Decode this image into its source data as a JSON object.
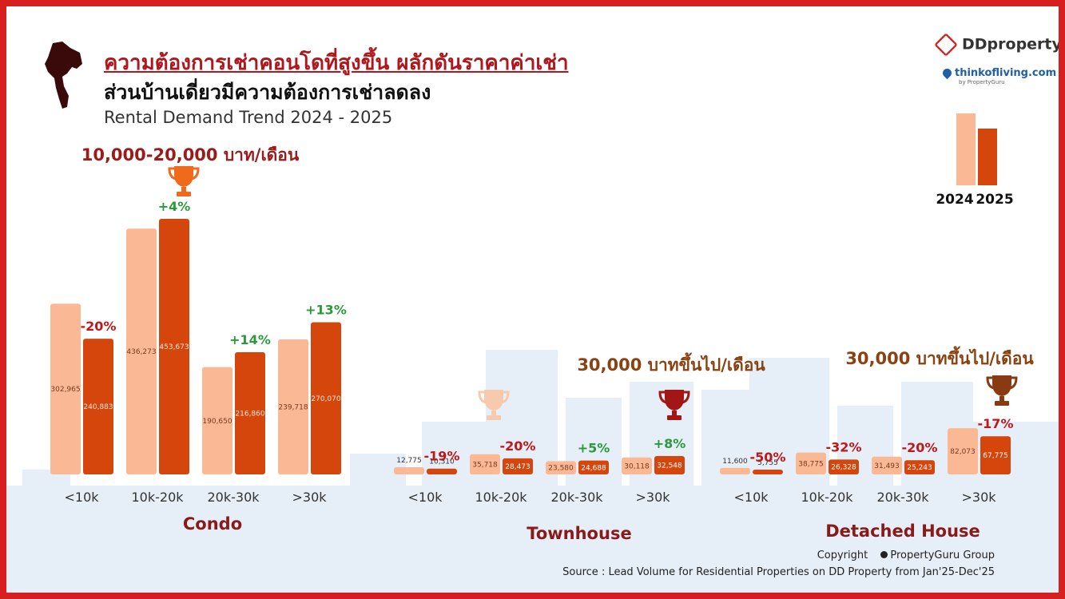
{
  "header": {
    "title": "ความต้องการเช่าคอนโดที่สูงขึ้น ผลักดันราคาค่าเช่า",
    "subtitle": "ส่วนบ้านเดี่ยวมีความต้องการเช่าลดลง",
    "subtitle_en": "Rental Demand Trend 2024 - 2025"
  },
  "logos": {
    "ddproperty": "DDproperty",
    "thinkofliving": "thinkofliving.com",
    "thinkofliving_by": "by PropertyGuru"
  },
  "legend": {
    "years": [
      "2024",
      "2025"
    ],
    "colors": [
      "#fbb894",
      "#d4460c"
    ]
  },
  "highlights": [
    {
      "text": "10,000-20,000 บาท/เดือน",
      "color": "#9b1a1a"
    },
    {
      "text": "30,000 บาทขึ้นไป/เดือน",
      "color": "#8a4212"
    },
    {
      "text": "30,000 บาทขึ้นไป/เดือน",
      "color": "#8a4212"
    }
  ],
  "icons": {
    "map": "thailand-map-icon",
    "trophy_condo": "trophy-icon",
    "trophy_townhouse_faded": "trophy-icon",
    "trophy_townhouse": "trophy-icon",
    "trophy_detached": "trophy-icon",
    "copyright": "propertyguru-icon"
  },
  "chart_data": [
    {
      "type": "bar",
      "title": "Condo",
      "categories": [
        "<10k",
        "10k-20k",
        "20k-30k",
        ">30k"
      ],
      "series": [
        {
          "name": "2024",
          "values": [
            302965,
            436273,
            190650,
            239718
          ]
        },
        {
          "name": "2025",
          "values": [
            240883,
            453673,
            216860,
            270070
          ]
        }
      ],
      "changes": [
        "-20%",
        "+4%",
        "+14%",
        "+13%"
      ]
    },
    {
      "type": "bar",
      "title": "Townhouse",
      "categories": [
        "<10k",
        "10k-20k",
        "20k-30k",
        ">30k"
      ],
      "series": [
        {
          "name": "2024",
          "values": [
            12775,
            35718,
            23580,
            30118
          ]
        },
        {
          "name": "2025",
          "values": [
            10310,
            28473,
            24688,
            32548
          ]
        }
      ],
      "changes": [
        "-19%",
        "-20%",
        "+5%",
        "+8%"
      ]
    },
    {
      "type": "bar",
      "title": "Detached House",
      "categories": [
        "<10k",
        "10k-20k",
        "20k-30k",
        ">30k"
      ],
      "series": [
        {
          "name": "2024",
          "values": [
            11600,
            38775,
            31493,
            82073
          ]
        },
        {
          "name": "2025",
          "values": [
            5755,
            26328,
            25243,
            67775
          ]
        }
      ],
      "changes": [
        "-50%",
        "-32%",
        "-20%",
        "-17%"
      ]
    }
  ],
  "footer": {
    "copyright": "Copyright",
    "owner": "PropertyGuru Group",
    "source": "Source : Lead Volume for Residential Properties on DD Property from Jan'25-Dec'25"
  }
}
